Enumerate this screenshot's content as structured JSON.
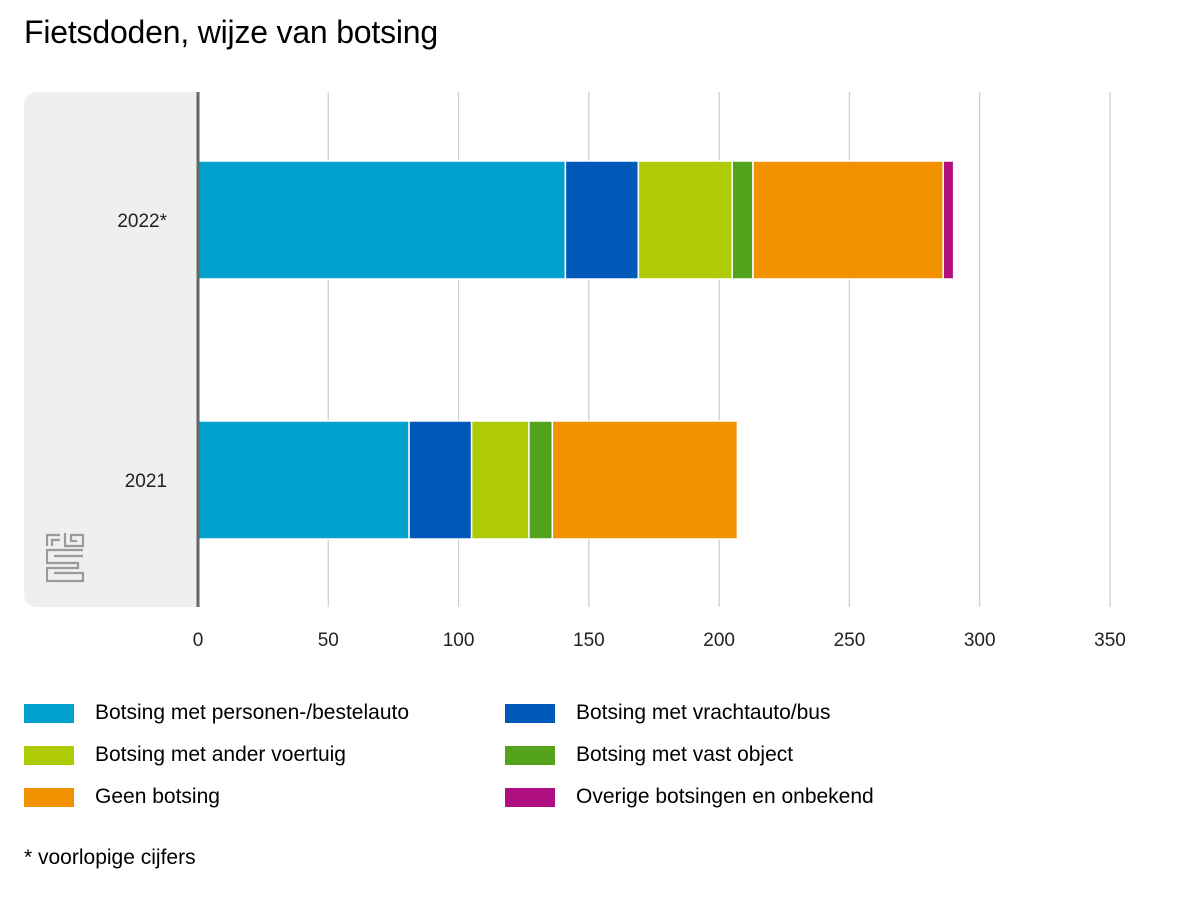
{
  "chart_data": {
    "type": "bar",
    "orientation": "horizontal",
    "stacked": true,
    "title": "Fietsdoden, wijze van botsing",
    "categories": [
      "2022*",
      "2021"
    ],
    "series": [
      {
        "name": "Botsing met personen-/bestelauto",
        "color": "#00a1cd",
        "values": [
          141,
          81
        ]
      },
      {
        "name": "Botsing met vrachtauto/bus",
        "color": "#0058b8",
        "values": [
          28,
          24
        ]
      },
      {
        "name": "Botsing met ander voertuig",
        "color": "#afcb05",
        "values": [
          36,
          22
        ]
      },
      {
        "name": "Botsing met vast object",
        "color": "#53a31d",
        "values": [
          8,
          9
        ]
      },
      {
        "name": "Geen botsing",
        "color": "#f39200",
        "values": [
          73,
          71
        ]
      },
      {
        "name": "Overige botsingen en onbekend",
        "color": "#af0e80",
        "values": [
          4,
          0
        ]
      }
    ],
    "xlim": [
      0,
      350
    ],
    "xticks": [
      "0",
      "50",
      "100",
      "150",
      "200",
      "250",
      "300",
      "350"
    ],
    "grid": true,
    "legend_position": "bottom",
    "footnote": "* voorlopige cijfers"
  }
}
